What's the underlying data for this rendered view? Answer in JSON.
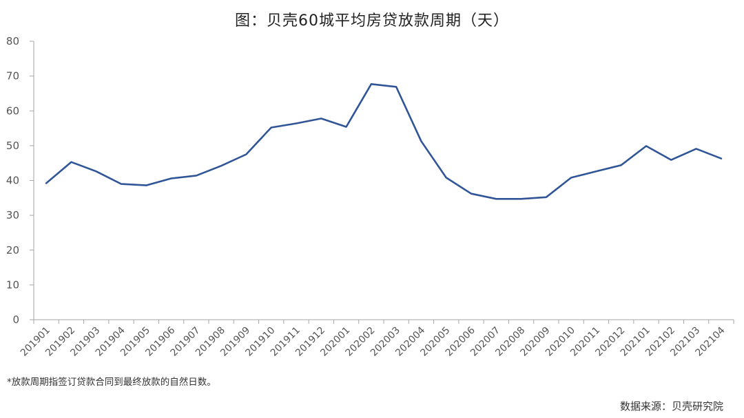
{
  "title": "图：贝壳60城平均房贷放款周期（天）",
  "footnote": "*放款周期指签订贷款合同到最终放款的自然日数。",
  "source": "数据来源：贝壳研究院",
  "colors": {
    "line": "#2F5597",
    "axis": "#A6A6A6",
    "text": "#555555"
  },
  "chart_data": {
    "type": "line",
    "title": "图：贝壳60城平均房贷放款周期（天）",
    "xlabel": "",
    "ylabel": "",
    "ylim": [
      0,
      80
    ],
    "yticks": [
      0,
      10,
      20,
      30,
      40,
      50,
      60,
      70,
      80
    ],
    "grid": false,
    "legend": null,
    "categories": [
      "201901",
      "201902",
      "201903",
      "201904",
      "201905",
      "201906",
      "201907",
      "201908",
      "201909",
      "201910",
      "201911",
      "201912",
      "202001",
      "202002",
      "202003",
      "202004",
      "202005",
      "202006",
      "202007",
      "202008",
      "202009",
      "202010",
      "202011",
      "202012",
      "202101",
      "202102",
      "202103",
      "202104"
    ],
    "series": [
      {
        "name": "平均房贷放款周期（天）",
        "values": [
          39.2,
          45.3,
          42.6,
          39.0,
          38.6,
          40.6,
          41.4,
          44.2,
          47.5,
          55.2,
          56.4,
          57.8,
          55.4,
          67.7,
          66.9,
          51.3,
          40.8,
          36.2,
          34.7,
          34.7,
          35.2,
          40.8,
          42.6,
          44.4,
          49.9,
          45.9,
          49.1,
          46.3
        ]
      }
    ],
    "annotations": [
      "*放款周期指签订贷款合同到最终放款的自然日数。",
      "数据来源：贝壳研究院"
    ]
  }
}
